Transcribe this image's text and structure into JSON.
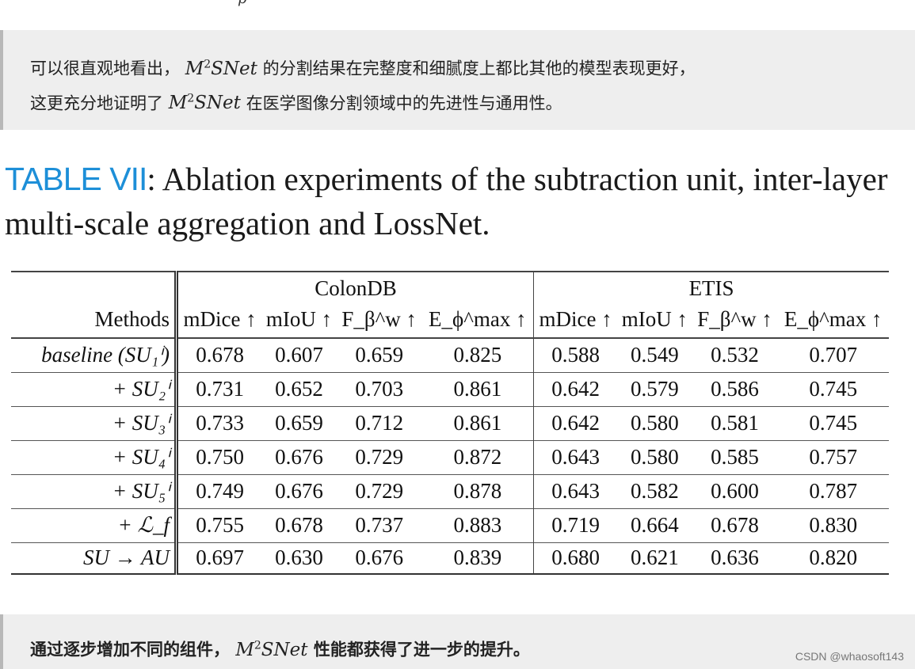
{
  "top_fragment": "p",
  "quote_top": {
    "line1_prefix": "可以很直观地看出，",
    "math": "M",
    "math_sup": "2",
    "math_tail": "SNet",
    "line1_suffix": "的分割结果在完整度和细腻度上都比其他的模型表现更好，",
    "line2_prefix": "这更充分地证明了",
    "line2_suffix": " 在医学图像分割领域中的先进性与通用性。"
  },
  "caption": {
    "label": "TABLE VII",
    "text": ": Ablation experiments of the subtraction unit, inter-layer multi-scale aggregation and LossNet."
  },
  "table": {
    "group_headers": [
      "ColonDB",
      "ETIS"
    ],
    "method_header": "Methods",
    "metric_headers": [
      "mDice ↑",
      "mIoU ↑",
      "F_β^w ↑",
      "E_ϕ^max ↑",
      "mDice ↑",
      "mIoU ↑",
      "F_β^w ↑",
      "E_ϕ^max ↑"
    ],
    "rows": [
      {
        "method": "baseline (SU₁ⁱ)",
        "values": [
          "0.678",
          "0.607",
          "0.659",
          "0.825",
          "0.588",
          "0.549",
          "0.532",
          "0.707"
        ]
      },
      {
        "method": "+ SU₂ⁱ",
        "values": [
          "0.731",
          "0.652",
          "0.703",
          "0.861",
          "0.642",
          "0.579",
          "0.586",
          "0.745"
        ]
      },
      {
        "method": "+ SU₃ⁱ",
        "values": [
          "0.733",
          "0.659",
          "0.712",
          "0.861",
          "0.642",
          "0.580",
          "0.581",
          "0.745"
        ]
      },
      {
        "method": "+ SU₄ⁱ",
        "values": [
          "0.750",
          "0.676",
          "0.729",
          "0.872",
          "0.643",
          "0.580",
          "0.585",
          "0.757"
        ]
      },
      {
        "method": "+ SU₅ⁱ",
        "values": [
          "0.749",
          "0.676",
          "0.729",
          "0.878",
          "0.643",
          "0.582",
          "0.600",
          "0.787"
        ]
      },
      {
        "method": "+ ℒ_f",
        "values": [
          "0.755",
          "0.678",
          "0.737",
          "0.883",
          "0.719",
          "0.664",
          "0.678",
          "0.830"
        ]
      },
      {
        "method": "SU → AU",
        "values": [
          "0.697",
          "0.630",
          "0.676",
          "0.839",
          "0.680",
          "0.621",
          "0.636",
          "0.820"
        ]
      }
    ]
  },
  "quote_bottom": {
    "prefix": "通过逐步增加不同的组件，",
    "suffix": " 性能都获得了进一步的提升。"
  },
  "watermark": "CSDN @whaosoft143"
}
